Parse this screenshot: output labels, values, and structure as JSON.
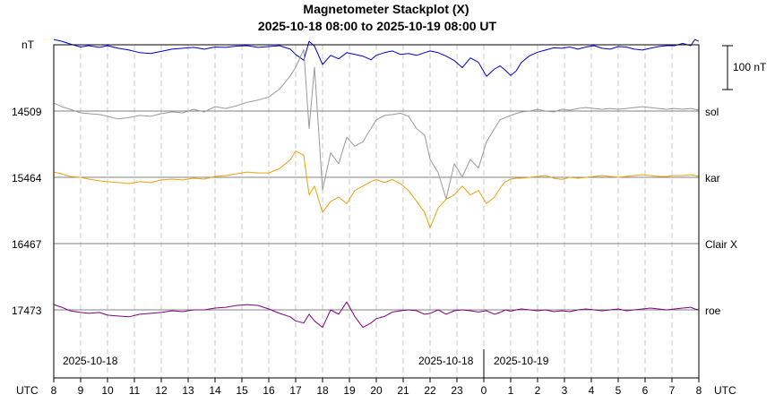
{
  "chart_data": {
    "type": "line",
    "title": "Magnetometer Stackplot (X)",
    "subtitle": "2025-10-18 08:00 to 2025-10-19 08:00 UT",
    "y_unit": "nT",
    "x_unit": "UTC",
    "scale_bar_label": "100 nT",
    "grid": true,
    "x_ticks": [
      "8",
      "9",
      "10",
      "11",
      "12",
      "13",
      "14",
      "15",
      "16",
      "17",
      "18",
      "19",
      "20",
      "21",
      "22",
      "23",
      "0",
      "1",
      "2",
      "3",
      "4",
      "5",
      "6",
      "7",
      "8"
    ],
    "date_labels": [
      "2025-10-18",
      "2025-10-18",
      "2025-10-19"
    ],
    "series": [
      {
        "name": "",
        "baseline": "",
        "color": "#0000cc",
        "x": [
          0,
          0.3,
          0.6,
          1,
          1.3,
          1.7,
          2,
          2.4,
          2.8,
          3.2,
          3.6,
          4,
          4.4,
          4.8,
          5.2,
          5.6,
          6,
          6.4,
          6.8,
          7.2,
          7.6,
          8,
          8.4,
          8.8,
          9,
          9.3,
          9.5,
          9.7,
          10,
          10.3,
          10.6,
          10.9,
          11.2,
          11.5,
          11.8,
          12,
          12.3,
          12.6,
          12.9,
          13.2,
          13.5,
          13.8,
          14,
          14.3,
          14.6,
          14.9,
          15.2,
          15.5,
          15.8,
          16.1,
          16.4,
          16.6,
          16.8,
          17,
          17.2,
          17.4,
          17.7,
          18,
          18.3,
          18.6,
          18.9,
          19.2,
          19.5,
          19.8,
          20.1,
          20.4,
          20.7,
          21,
          21.3,
          21.6,
          21.9,
          22.2,
          22.5,
          22.8,
          23.1,
          23.4,
          23.7,
          23.85,
          24
        ],
        "y": [
          12,
          8,
          2,
          -5,
          -2,
          -6,
          -2,
          -8,
          -12,
          -18,
          -20,
          -15,
          -10,
          -8,
          -6,
          -10,
          -5,
          -6,
          -3,
          -2,
          -6,
          -4,
          -2,
          -10,
          -22,
          -35,
          8,
          -3,
          -45,
          -24,
          -32,
          -18,
          -22,
          -26,
          -34,
          -24,
          -18,
          -14,
          -22,
          -20,
          -24,
          -18,
          -14,
          -18,
          -26,
          -36,
          -52,
          -30,
          -40,
          -72,
          -55,
          -48,
          -58,
          -70,
          -60,
          -40,
          -25,
          -17,
          -12,
          -7,
          -8,
          -5,
          -10,
          -5,
          -2,
          -8,
          -10,
          -4,
          -5,
          -10,
          -12,
          -8,
          -4,
          -2,
          -2,
          3,
          -2,
          12,
          8
        ]
      },
      {
        "name": "sol",
        "baseline": "14509",
        "color": "#999999",
        "x": [
          0,
          0.3,
          0.6,
          1,
          1.3,
          1.7,
          2,
          2.4,
          2.8,
          3.2,
          3.6,
          4,
          4.4,
          4.8,
          5.2,
          5.6,
          6,
          6.4,
          6.8,
          7.2,
          7.6,
          8,
          8.4,
          8.8,
          9,
          9.3,
          9.5,
          9.7,
          10,
          10.3,
          10.6,
          10.9,
          11.2,
          11.5,
          11.8,
          12,
          12.3,
          12.6,
          12.9,
          13.2,
          13.5,
          13.8,
          14,
          14.3,
          14.6,
          14.9,
          15.2,
          15.5,
          15.8,
          16.1,
          16.4,
          16.6,
          16.8,
          17,
          17.2,
          17.4,
          17.7,
          18,
          18.3,
          18.6,
          18.9,
          19.2,
          19.5,
          19.8,
          20.1,
          20.4,
          20.7,
          21,
          21.3,
          21.6,
          21.9,
          22.2,
          22.5,
          22.8,
          23.1,
          23.4,
          23.7,
          23.85,
          24
        ],
        "y": [
          18,
          10,
          4,
          -4,
          -6,
          -8,
          -12,
          -18,
          -15,
          -10,
          -12,
          -6,
          -2,
          -4,
          4,
          -2,
          10,
          6,
          12,
          20,
          25,
          32,
          50,
          80,
          100,
          140,
          -40,
          100,
          -180,
          -95,
          -120,
          -60,
          -80,
          -70,
          -40,
          -20,
          -10,
          -8,
          -5,
          -12,
          -40,
          -55,
          -110,
          -140,
          -200,
          -120,
          -150,
          -110,
          -130,
          -70,
          -40,
          -20,
          -15,
          -10,
          -6,
          -2,
          0,
          4,
          0,
          -2,
          4,
          2,
          6,
          8,
          6,
          4,
          6,
          4,
          6,
          8,
          10,
          8,
          6,
          4,
          6,
          4,
          6,
          4,
          2
        ]
      },
      {
        "name": "kar",
        "baseline": "15464",
        "color": "#f0a010",
        "x": [
          0,
          0.3,
          0.6,
          1,
          1.3,
          1.7,
          2,
          2.4,
          2.8,
          3.2,
          3.6,
          4,
          4.4,
          4.8,
          5.2,
          5.6,
          6,
          6.4,
          6.8,
          7.2,
          7.6,
          8,
          8.4,
          8.8,
          9,
          9.3,
          9.5,
          9.7,
          10,
          10.3,
          10.6,
          10.9,
          11.2,
          11.5,
          11.8,
          12,
          12.3,
          12.6,
          12.9,
          13.2,
          13.5,
          13.8,
          14,
          14.3,
          14.6,
          14.9,
          15.2,
          15.5,
          15.8,
          16.1,
          16.4,
          16.6,
          16.8,
          17,
          17.2,
          17.4,
          17.7,
          18,
          18.3,
          18.6,
          18.9,
          19.2,
          19.5,
          19.8,
          20.1,
          20.4,
          20.7,
          21,
          21.3,
          21.6,
          21.9,
          22.2,
          22.5,
          22.8,
          23.1,
          23.4,
          23.7,
          23.85,
          24
        ],
        "y": [
          12,
          8,
          2,
          0,
          -4,
          -8,
          -10,
          -12,
          -14,
          -10,
          -12,
          -6,
          -4,
          -6,
          -2,
          -4,
          2,
          4,
          8,
          12,
          10,
          10,
          20,
          40,
          60,
          50,
          -40,
          -20,
          -80,
          -55,
          -45,
          -60,
          -30,
          -20,
          -10,
          -5,
          -12,
          -5,
          -15,
          -30,
          -55,
          -80,
          -115,
          -70,
          -50,
          -40,
          -20,
          -40,
          -30,
          -60,
          -45,
          -25,
          -10,
          -4,
          -2,
          -2,
          0,
          2,
          4,
          -2,
          -5,
          0,
          -2,
          0,
          2,
          4,
          2,
          0,
          2,
          4,
          6,
          4,
          2,
          2,
          4,
          4,
          6,
          4,
          2
        ]
      },
      {
        "name": "Clair X",
        "baseline": "16467",
        "color": "#999999",
        "x": [],
        "y": []
      },
      {
        "name": "roe",
        "baseline": "17473",
        "color": "#800080",
        "x": [
          0,
          0.3,
          0.6,
          1,
          1.3,
          1.7,
          2,
          2.4,
          2.8,
          3.2,
          3.6,
          4,
          4.4,
          4.8,
          5.2,
          5.6,
          6,
          6.4,
          6.8,
          7.2,
          7.6,
          8,
          8.4,
          8.8,
          9,
          9.3,
          9.5,
          9.7,
          10,
          10.3,
          10.6,
          10.9,
          11.2,
          11.5,
          11.8,
          12,
          12.3,
          12.6,
          12.9,
          13.2,
          13.5,
          13.8,
          14,
          14.3,
          14.6,
          14.9,
          15.2,
          15.5,
          15.8,
          16.1,
          16.4,
          16.6,
          16.8,
          17,
          17.2,
          17.4,
          17.7,
          18,
          18.3,
          18.6,
          18.9,
          19.2,
          19.5,
          19.8,
          20.1,
          20.4,
          20.7,
          21,
          21.3,
          21.6,
          21.9,
          22.2,
          22.5,
          22.8,
          23.1,
          23.4,
          23.7,
          23.85,
          24
        ],
        "y": [
          12,
          6,
          -2,
          -6,
          -8,
          -6,
          -12,
          -14,
          -16,
          -10,
          -8,
          -6,
          -2,
          -4,
          0,
          0,
          4,
          6,
          10,
          12,
          10,
          2,
          -8,
          -16,
          -25,
          -30,
          -10,
          -25,
          -40,
          0,
          -10,
          18,
          -15,
          -40,
          -30,
          -20,
          -15,
          -5,
          -2,
          0,
          -2,
          -10,
          -8,
          0,
          -10,
          -2,
          0,
          -2,
          -5,
          -2,
          -10,
          -6,
          0,
          -3,
          0,
          2,
          0,
          -2,
          0,
          -4,
          -2,
          -4,
          0,
          2,
          0,
          -2,
          0,
          2,
          -2,
          0,
          2,
          4,
          2,
          0,
          2,
          4,
          6,
          2,
          0
        ]
      }
    ]
  }
}
